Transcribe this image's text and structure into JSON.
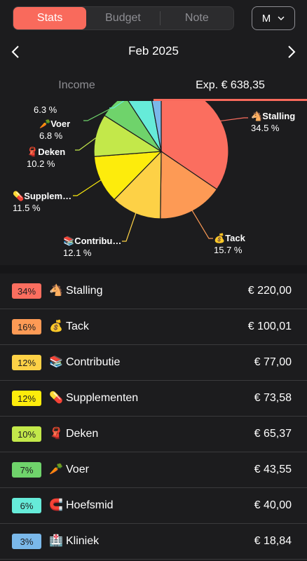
{
  "header": {
    "tabs": [
      {
        "label": "Stats",
        "active": true
      },
      {
        "label": "Budget",
        "active": false
      },
      {
        "label": "Note",
        "active": false
      }
    ],
    "period_label": "M"
  },
  "month_nav": {
    "title": "Feb 2025"
  },
  "type_tabs": {
    "income_label": "Income",
    "expense_label": "Exp. € 638,35"
  },
  "colors": {
    "accent": "#f96a5c",
    "slices": [
      "#fb6e5f",
      "#fd9a55",
      "#fdd146",
      "#fdec0c",
      "#c3e84a",
      "#6fd36b",
      "#66ebd9",
      "#7ab8ea"
    ]
  },
  "chart_data": {
    "type": "pie",
    "categories": [
      {
        "emoji": "🐴",
        "name": "Stalling",
        "pct_label": "34.5 %",
        "value": 34.5
      },
      {
        "emoji": "💰",
        "name": "Tack",
        "pct_label": "15.7 %",
        "value": 15.7
      },
      {
        "emoji": "📚",
        "name": "Contribu…",
        "pct_label": "12.1 %",
        "value": 12.1
      },
      {
        "emoji": "💊",
        "name": "Supplem…",
        "pct_label": "11.5 %",
        "value": 11.5
      },
      {
        "emoji": "🧣",
        "name": "Deken",
        "pct_label": "10.2 %",
        "value": 10.2
      },
      {
        "emoji": "🥕",
        "name": "Voer",
        "pct_label": "6.8 %",
        "value": 6.8
      },
      {
        "emoji": "",
        "name": "",
        "pct_label": "6.3 %",
        "value": 6.3
      },
      {
        "emoji": "",
        "name": "",
        "pct_label": "",
        "value": 2.9
      }
    ]
  },
  "rows": [
    {
      "pct": "34%",
      "emoji": "🐴",
      "name": "Stalling",
      "amount": "€ 220,00"
    },
    {
      "pct": "16%",
      "emoji": "💰",
      "name": "Tack",
      "amount": "€ 100,01"
    },
    {
      "pct": "12%",
      "emoji": "📚",
      "name": "Contributie",
      "amount": "€ 77,00"
    },
    {
      "pct": "12%",
      "emoji": "💊",
      "name": "Supplementen",
      "amount": "€ 73,58"
    },
    {
      "pct": "10%",
      "emoji": "🧣",
      "name": "Deken",
      "amount": "€ 65,37"
    },
    {
      "pct": "7%",
      "emoji": "🥕",
      "name": "Voer",
      "amount": "€ 43,55"
    },
    {
      "pct": "6%",
      "emoji": "🧲",
      "name": "Hoefsmid",
      "amount": "€ 40,00"
    },
    {
      "pct": "3%",
      "emoji": "🏥",
      "name": "Kliniek",
      "amount": "€ 18,84"
    }
  ]
}
